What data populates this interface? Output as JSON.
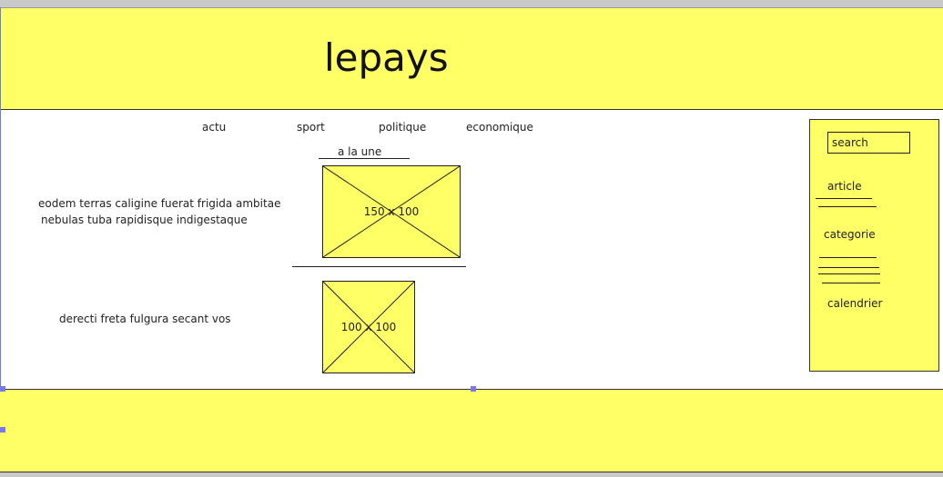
{
  "header": {
    "logo": "lepays"
  },
  "nav": [
    "actu",
    "sport",
    "politique",
    "economique"
  ],
  "main": {
    "section_title": "a la une",
    "article1_text_line1": "eodem terras caligine fuerat frigida ambitae",
    "article1_text_line2": "nebulas tuba rapidisque indigestaque",
    "image1_label": "150 x 100",
    "article2_text": "derecti freta fulgura secant vos",
    "image2_label": "100 x 100"
  },
  "sidebar": {
    "search_label": "search",
    "article_label": "article",
    "categorie_label": "categorie",
    "calendrier_label": "calendrier"
  },
  "colors": {
    "accent": "#ffff66",
    "selection": "#7777ee"
  }
}
